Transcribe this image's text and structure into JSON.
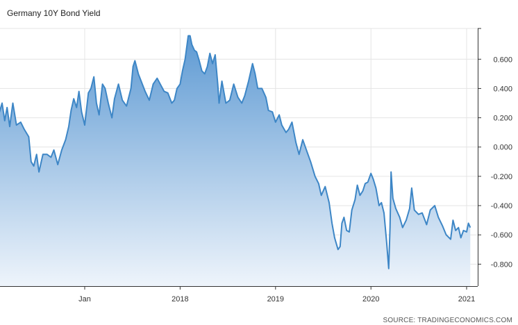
{
  "title": "Germany 10Y Bond Yield",
  "source": "SOURCE: TRADINGECONOMICS.COM",
  "chart_data": {
    "type": "area",
    "title": "Germany 10Y Bond Yield",
    "xlabel": "",
    "ylabel": "",
    "ylim": [
      -0.95,
      0.81
    ],
    "xlim": [
      "2016-02-01",
      "2021-01-15"
    ],
    "grid": true,
    "legend": "none",
    "line_color": "#3d86c6",
    "fill_top_color": "#5e9ad3",
    "fill_bottom_color": "#eef4fb",
    "x_ticks": [
      {
        "label": "Jan",
        "date": "2017-01-01"
      },
      {
        "label": "2018",
        "date": "2018-01-01"
      },
      {
        "label": "2019",
        "date": "2019-01-01"
      },
      {
        "label": "2020",
        "date": "2020-01-01"
      },
      {
        "label": "2021",
        "date": "2021-01-01"
      }
    ],
    "y_ticks": [
      {
        "label": "0.600",
        "value": 0.6
      },
      {
        "label": "0.400",
        "value": 0.4
      },
      {
        "label": "0.200",
        "value": 0.2
      },
      {
        "label": "0.000",
        "value": 0.0
      },
      {
        "label": "-0.200",
        "value": -0.2
      },
      {
        "label": "-0.400",
        "value": -0.4
      },
      {
        "label": "-0.600",
        "value": -0.6
      },
      {
        "label": "-0.800",
        "value": -0.8
      }
    ],
    "series": [
      {
        "points": [
          [
            "2016-02-01",
            0.36
          ],
          [
            "2016-02-10",
            0.24
          ],
          [
            "2016-02-20",
            0.3
          ],
          [
            "2016-03-01",
            0.18
          ],
          [
            "2016-03-10",
            0.27
          ],
          [
            "2016-03-20",
            0.14
          ],
          [
            "2016-04-01",
            0.3
          ],
          [
            "2016-04-15",
            0.15
          ],
          [
            "2016-05-01",
            0.17
          ],
          [
            "2016-05-15",
            0.12
          ],
          [
            "2016-06-01",
            0.07
          ],
          [
            "2016-06-10",
            -0.1
          ],
          [
            "2016-06-20",
            -0.13
          ],
          [
            "2016-07-01",
            -0.05
          ],
          [
            "2016-07-10",
            -0.17
          ],
          [
            "2016-07-25",
            -0.05
          ],
          [
            "2016-08-10",
            -0.05
          ],
          [
            "2016-08-25",
            -0.07
          ],
          [
            "2016-09-05",
            -0.02
          ],
          [
            "2016-09-20",
            -0.12
          ],
          [
            "2016-10-05",
            -0.02
          ],
          [
            "2016-10-20",
            0.05
          ],
          [
            "2016-11-01",
            0.14
          ],
          [
            "2016-11-10",
            0.25
          ],
          [
            "2016-11-20",
            0.33
          ],
          [
            "2016-12-01",
            0.27
          ],
          [
            "2016-12-10",
            0.38
          ],
          [
            "2016-12-20",
            0.24
          ],
          [
            "2017-01-01",
            0.15
          ],
          [
            "2017-01-15",
            0.37
          ],
          [
            "2017-01-25",
            0.4
          ],
          [
            "2017-02-05",
            0.48
          ],
          [
            "2017-02-15",
            0.3
          ],
          [
            "2017-02-25",
            0.22
          ],
          [
            "2017-03-10",
            0.43
          ],
          [
            "2017-03-20",
            0.4
          ],
          [
            "2017-04-01",
            0.3
          ],
          [
            "2017-04-15",
            0.2
          ],
          [
            "2017-04-25",
            0.33
          ],
          [
            "2017-05-10",
            0.43
          ],
          [
            "2017-05-25",
            0.32
          ],
          [
            "2017-06-10",
            0.28
          ],
          [
            "2017-06-27",
            0.4
          ],
          [
            "2017-07-05",
            0.55
          ],
          [
            "2017-07-12",
            0.59
          ],
          [
            "2017-07-25",
            0.5
          ],
          [
            "2017-08-05",
            0.45
          ],
          [
            "2017-08-20",
            0.38
          ],
          [
            "2017-09-05",
            0.32
          ],
          [
            "2017-09-20",
            0.43
          ],
          [
            "2017-10-05",
            0.47
          ],
          [
            "2017-10-20",
            0.42
          ],
          [
            "2017-11-01",
            0.38
          ],
          [
            "2017-11-15",
            0.37
          ],
          [
            "2017-11-30",
            0.3
          ],
          [
            "2017-12-10",
            0.32
          ],
          [
            "2017-12-20",
            0.4
          ],
          [
            "2018-01-01",
            0.43
          ],
          [
            "2018-01-10",
            0.52
          ],
          [
            "2018-01-20",
            0.6
          ],
          [
            "2018-02-01",
            0.76
          ],
          [
            "2018-02-08",
            0.76
          ],
          [
            "2018-02-15",
            0.7
          ],
          [
            "2018-02-25",
            0.66
          ],
          [
            "2018-03-05",
            0.65
          ],
          [
            "2018-03-15",
            0.59
          ],
          [
            "2018-03-25",
            0.52
          ],
          [
            "2018-04-05",
            0.5
          ],
          [
            "2018-04-15",
            0.55
          ],
          [
            "2018-04-25",
            0.64
          ],
          [
            "2018-05-05",
            0.57
          ],
          [
            "2018-05-15",
            0.63
          ],
          [
            "2018-05-25",
            0.43
          ],
          [
            "2018-05-30",
            0.3
          ],
          [
            "2018-06-10",
            0.45
          ],
          [
            "2018-06-25",
            0.3
          ],
          [
            "2018-07-10",
            0.32
          ],
          [
            "2018-07-25",
            0.43
          ],
          [
            "2018-08-10",
            0.34
          ],
          [
            "2018-08-25",
            0.3
          ],
          [
            "2018-09-05",
            0.35
          ],
          [
            "2018-09-20",
            0.45
          ],
          [
            "2018-10-05",
            0.57
          ],
          [
            "2018-10-15",
            0.5
          ],
          [
            "2018-10-25",
            0.4
          ],
          [
            "2018-11-10",
            0.4
          ],
          [
            "2018-11-25",
            0.34
          ],
          [
            "2018-12-05",
            0.25
          ],
          [
            "2018-12-20",
            0.24
          ],
          [
            "2019-01-01",
            0.17
          ],
          [
            "2019-01-15",
            0.22
          ],
          [
            "2019-01-25",
            0.15
          ],
          [
            "2019-02-10",
            0.1
          ],
          [
            "2019-02-20",
            0.12
          ],
          [
            "2019-03-05",
            0.17
          ],
          [
            "2019-03-20",
            0.03
          ],
          [
            "2019-04-01",
            -0.05
          ],
          [
            "2019-04-15",
            0.05
          ],
          [
            "2019-05-01",
            -0.03
          ],
          [
            "2019-05-15",
            -0.1
          ],
          [
            "2019-06-01",
            -0.2
          ],
          [
            "2019-06-15",
            -0.25
          ],
          [
            "2019-06-25",
            -0.33
          ],
          [
            "2019-07-10",
            -0.27
          ],
          [
            "2019-07-25",
            -0.38
          ],
          [
            "2019-08-05",
            -0.52
          ],
          [
            "2019-08-15",
            -0.62
          ],
          [
            "2019-08-28",
            -0.7
          ],
          [
            "2019-09-05",
            -0.68
          ],
          [
            "2019-09-12",
            -0.52
          ],
          [
            "2019-09-20",
            -0.48
          ],
          [
            "2019-09-30",
            -0.57
          ],
          [
            "2019-10-10",
            -0.58
          ],
          [
            "2019-10-20",
            -0.43
          ],
          [
            "2019-11-01",
            -0.36
          ],
          [
            "2019-11-10",
            -0.26
          ],
          [
            "2019-11-20",
            -0.33
          ],
          [
            "2019-12-01",
            -0.3
          ],
          [
            "2019-12-10",
            -0.25
          ],
          [
            "2019-12-20",
            -0.24
          ],
          [
            "2020-01-01",
            -0.18
          ],
          [
            "2020-01-10",
            -0.22
          ],
          [
            "2020-01-20",
            -0.28
          ],
          [
            "2020-02-01",
            -0.4
          ],
          [
            "2020-02-10",
            -0.38
          ],
          [
            "2020-02-20",
            -0.45
          ],
          [
            "2020-03-01",
            -0.65
          ],
          [
            "2020-03-09",
            -0.83
          ],
          [
            "2020-03-14",
            -0.55
          ],
          [
            "2020-03-18",
            -0.17
          ],
          [
            "2020-03-25",
            -0.35
          ],
          [
            "2020-04-05",
            -0.42
          ],
          [
            "2020-04-20",
            -0.48
          ],
          [
            "2020-05-01",
            -0.55
          ],
          [
            "2020-05-15",
            -0.5
          ],
          [
            "2020-05-28",
            -0.42
          ],
          [
            "2020-06-05",
            -0.28
          ],
          [
            "2020-06-15",
            -0.43
          ],
          [
            "2020-07-01",
            -0.46
          ],
          [
            "2020-07-15",
            -0.45
          ],
          [
            "2020-08-01",
            -0.53
          ],
          [
            "2020-08-15",
            -0.43
          ],
          [
            "2020-09-01",
            -0.4
          ],
          [
            "2020-09-15",
            -0.48
          ],
          [
            "2020-10-01",
            -0.54
          ],
          [
            "2020-10-15",
            -0.6
          ],
          [
            "2020-11-01",
            -0.63
          ],
          [
            "2020-11-10",
            -0.5
          ],
          [
            "2020-11-20",
            -0.57
          ],
          [
            "2020-12-01",
            -0.55
          ],
          [
            "2020-12-10",
            -0.62
          ],
          [
            "2020-12-20",
            -0.57
          ],
          [
            "2021-01-01",
            -0.58
          ],
          [
            "2021-01-08",
            -0.52
          ],
          [
            "2021-01-15",
            -0.55
          ]
        ]
      }
    ]
  }
}
